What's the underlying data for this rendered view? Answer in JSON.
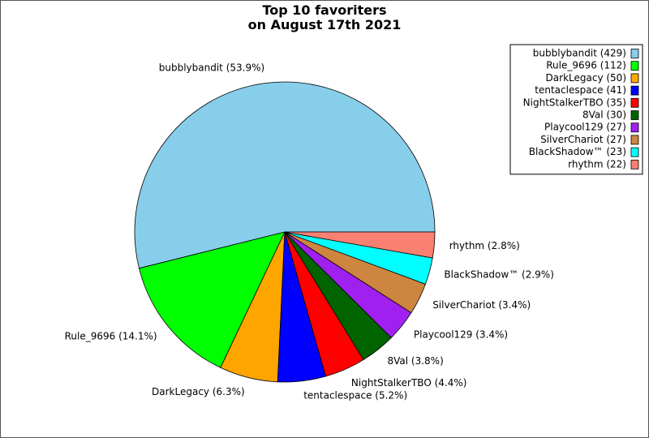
{
  "chart_data": {
    "type": "pie",
    "title": [
      "Top 10 favoriters",
      "on August 17th 2021"
    ],
    "legend_position": "top-right",
    "slices": [
      {
        "name": "bubblybandit",
        "value": 429,
        "percent_label": "bubblybandit (53.9%)",
        "legend_label": "bubblybandit (429)",
        "color": "#87ceeb"
      },
      {
        "name": "Rule_9696",
        "value": 112,
        "percent_label": "Rule_9696 (14.1%)",
        "legend_label": "Rule_9696 (112)",
        "color": "#00ff00"
      },
      {
        "name": "DarkLegacy",
        "value": 50,
        "percent_label": "DarkLegacy (6.3%)",
        "legend_label": "DarkLegacy (50)",
        "color": "#ffa500"
      },
      {
        "name": "tentaclespace",
        "value": 41,
        "percent_label": "tentaclespace (5.2%)",
        "legend_label": "tentaclespace (41)",
        "color": "#0000ff"
      },
      {
        "name": "NightStalkerTBO",
        "value": 35,
        "percent_label": "NightStalkerTBO (4.4%)",
        "legend_label": "NightStalkerTBO (35)",
        "color": "#ff0000"
      },
      {
        "name": "8Val",
        "value": 30,
        "percent_label": "8Val (3.8%)",
        "legend_label": "8Val (30)",
        "color": "#006400"
      },
      {
        "name": "Playcool129",
        "value": 27,
        "percent_label": "Playcool129 (3.4%)",
        "legend_label": "Playcool129 (27)",
        "color": "#a020f0"
      },
      {
        "name": "SilverChariot",
        "value": 27,
        "percent_label": "SilverChariot (3.4%)",
        "legend_label": "SilverChariot (27)",
        "color": "#cd853f"
      },
      {
        "name": "BlackShadow™",
        "value": 23,
        "percent_label": "BlackShadow™ (2.9%)",
        "legend_label": "BlackShadow™ (23)",
        "color": "#00ffff"
      },
      {
        "name": "rhythm",
        "value": 22,
        "percent_label": "rhythm (2.8%)",
        "legend_label": "rhythm (22)",
        "color": "#fa8072"
      }
    ]
  }
}
